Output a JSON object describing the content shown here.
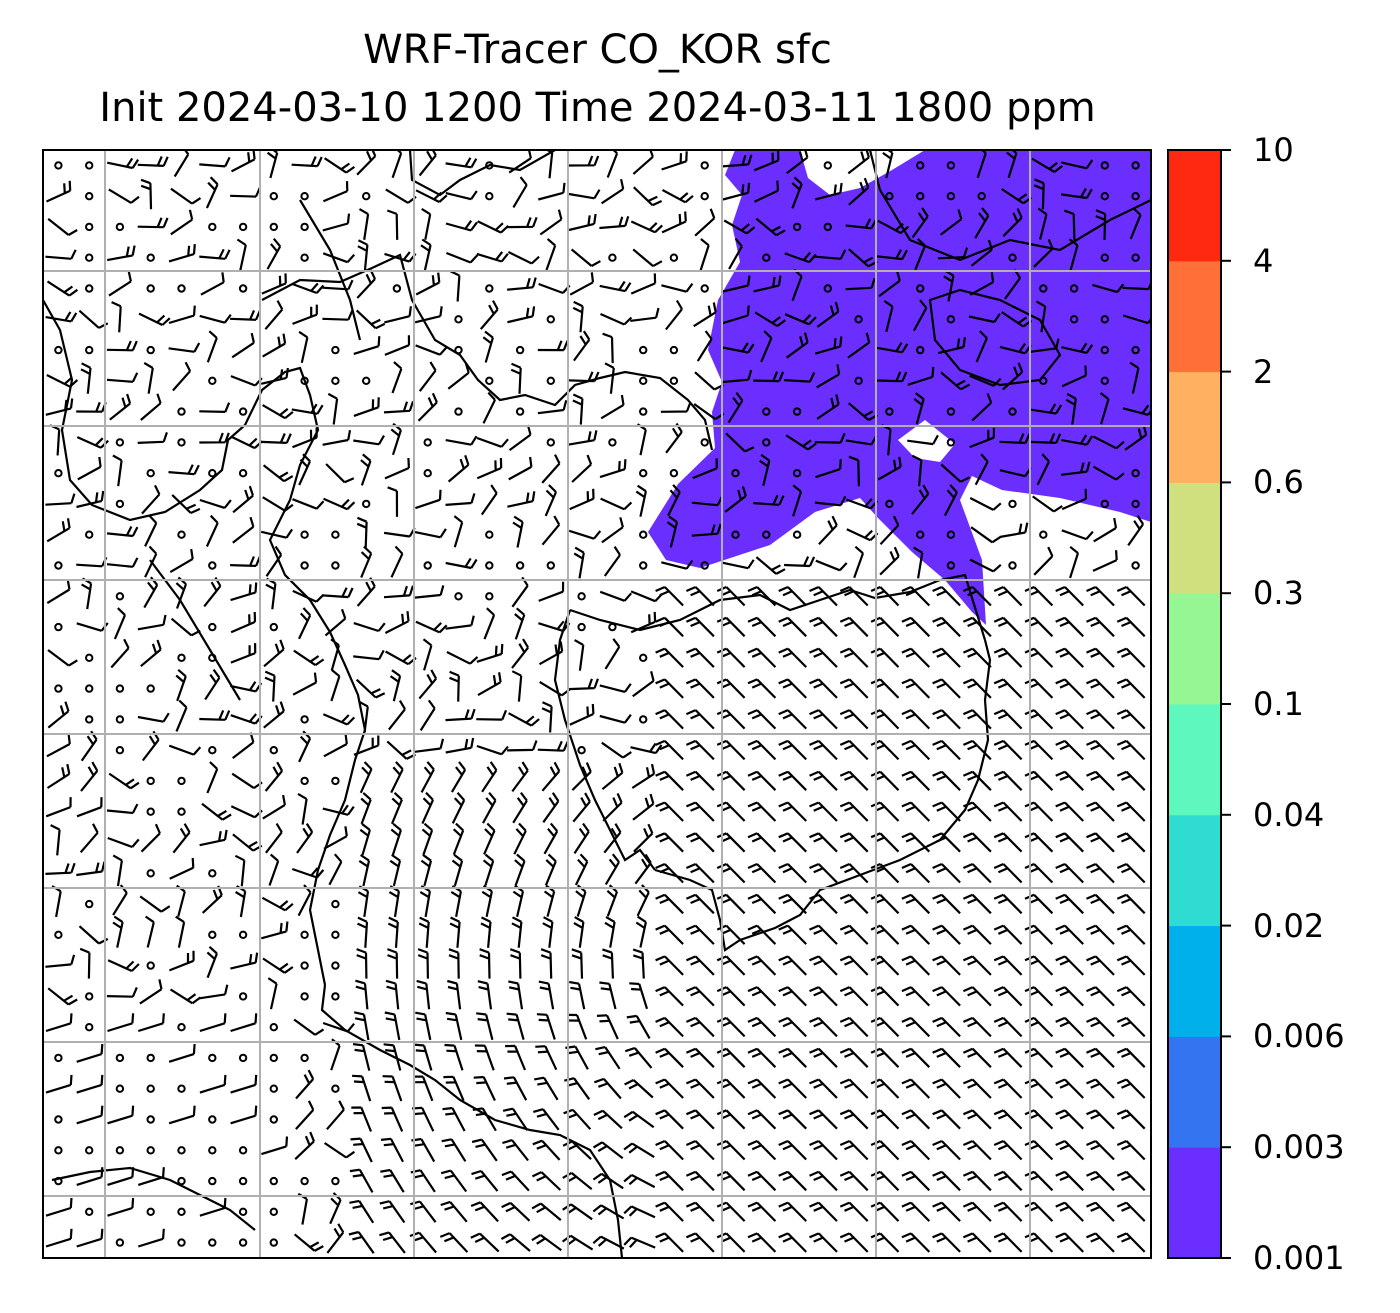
{
  "title": {
    "line1": "WRF-Tracer CO_KOR sfc",
    "line2": "Init 2024-03-10 1200 Time 2024-03-11 1800 ppm"
  },
  "colorbar": {
    "levels": [
      {
        "label": "0.001",
        "color": "#6a2eff"
      },
      {
        "label": "0.003",
        "color": "#3474f0"
      },
      {
        "label": "0.006",
        "color": "#00b0ea"
      },
      {
        "label": "0.02",
        "color": "#2edcd2"
      },
      {
        "label": "0.04",
        "color": "#5ef8be"
      },
      {
        "label": "0.1",
        "color": "#94f794"
      },
      {
        "label": "0.3",
        "color": "#d0e07e"
      },
      {
        "label": "0.6",
        "color": "#ffb060"
      },
      {
        "label": "2",
        "color": "#ff7038"
      },
      {
        "label": "4",
        "color": "#ff2810"
      },
      {
        "label": "10",
        "color": null
      }
    ]
  },
  "colors": {
    "tracer_fill": "#6a2eff",
    "coastline": "#000000",
    "gridline": "#b0b0b0",
    "barb": "#000000"
  }
}
